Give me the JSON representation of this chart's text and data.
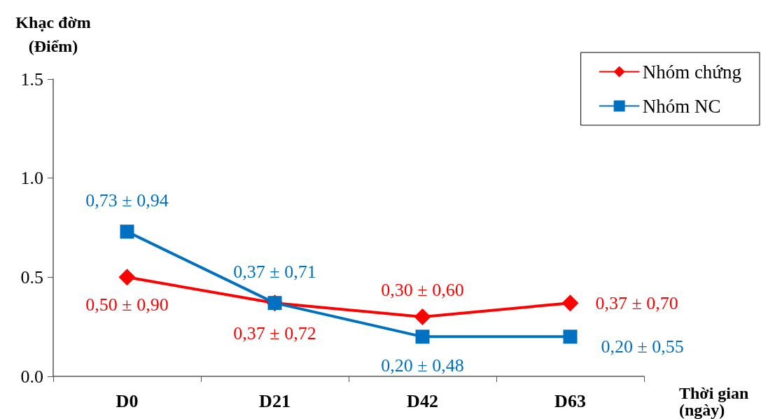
{
  "chart_data": {
    "type": "line",
    "xlabel": "Thời gian\n(ngày)",
    "ylabel": "Khạc đờm\n(Điểm)",
    "categories": [
      "D0",
      "D21",
      "D42",
      "D63"
    ],
    "series": [
      {
        "name": "Nhóm chứng",
        "color": "#ff0000",
        "marker": "diamond",
        "values": [
          0.5,
          0.37,
          0.3,
          0.37
        ],
        "value_labels": [
          "0,50 ± 0,90",
          "0,37 ± 0,72",
          "0,30 ± 0,60",
          "0,37 ± 0,70"
        ]
      },
      {
        "name": "Nhóm NC",
        "color": "#0070c0",
        "marker": "square",
        "values": [
          0.73,
          0.37,
          0.2,
          0.2
        ],
        "value_labels": [
          "0,73 ± 0,94",
          "0,37 ± 0,71",
          "0,20 ± 0,48",
          "0,20 ± 0,55"
        ]
      }
    ],
    "ylim": [
      0,
      1.5
    ],
    "yticks": [
      {
        "value": 0,
        "label": "0.0"
      },
      {
        "value": 0.5,
        "label": "0.5"
      },
      {
        "value": 1,
        "label": "1.0"
      },
      {
        "value": 1.5,
        "label": "1.5"
      }
    ],
    "grid": false,
    "legend": "top right",
    "line_style": "solid"
  }
}
